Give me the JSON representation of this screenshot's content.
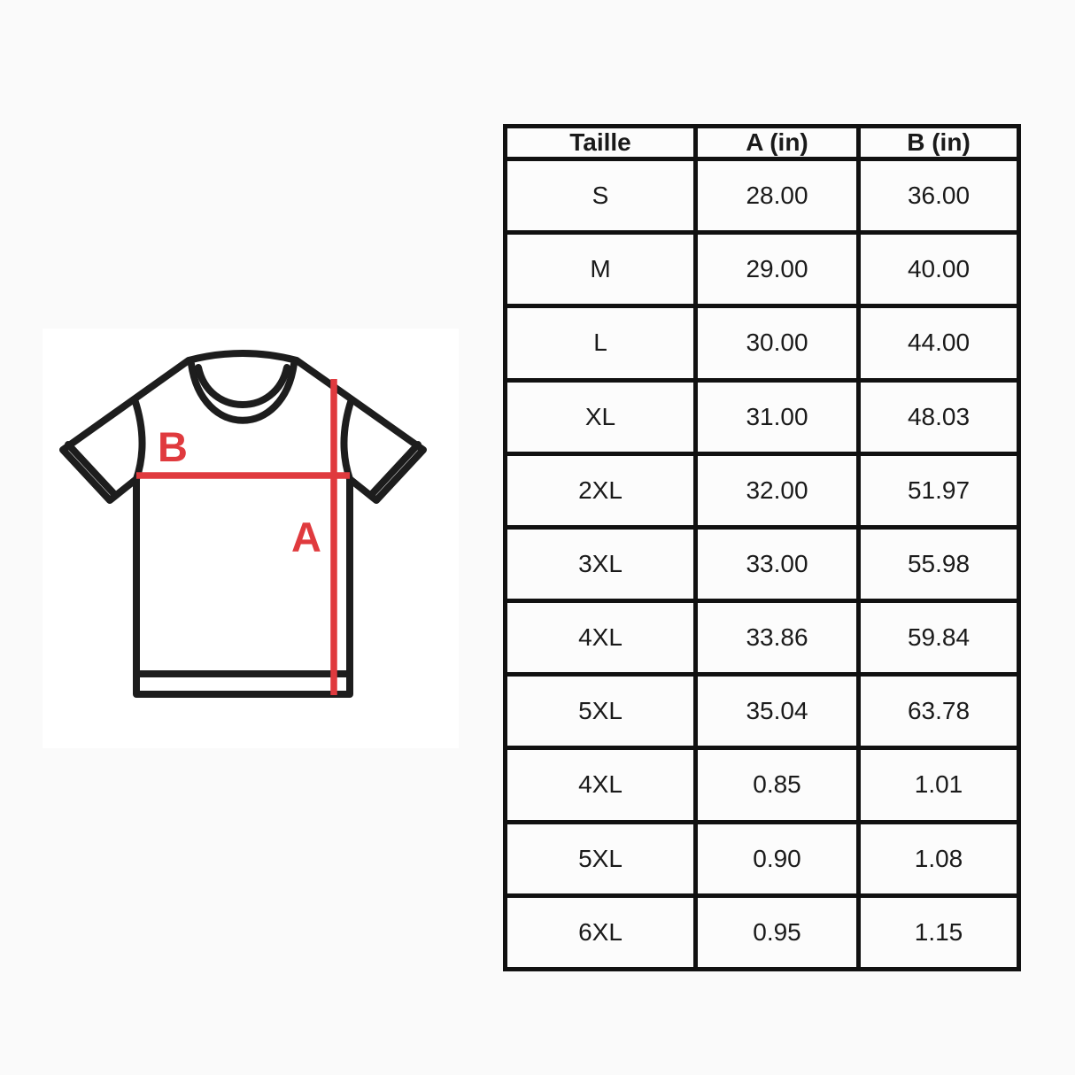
{
  "colors": {
    "background": "#fafafa",
    "panel": "#ffffff",
    "shirt_outline": "#1d1d1d",
    "accent_red": "#e03a3e",
    "table_border": "#111111",
    "text": "#1a1a1a"
  },
  "diagram": {
    "label_a": "A",
    "label_b": "B"
  },
  "chart_data": {
    "type": "table",
    "columns": [
      "Taille",
      "A (in)",
      "B (in)"
    ],
    "rows": [
      [
        "S",
        "28.00",
        "36.00"
      ],
      [
        "M",
        "29.00",
        "40.00"
      ],
      [
        "L",
        "30.00",
        "44.00"
      ],
      [
        "XL",
        "31.00",
        "48.03"
      ],
      [
        "2XL",
        "32.00",
        "51.97"
      ],
      [
        "3XL",
        "33.00",
        "55.98"
      ],
      [
        "4XL",
        "33.86",
        "59.84"
      ],
      [
        "5XL",
        "35.04",
        "63.78"
      ],
      [
        "4XL",
        "0.85",
        "1.01"
      ],
      [
        "5XL",
        "0.90",
        "1.08"
      ],
      [
        "6XL",
        "0.95",
        "1.15"
      ]
    ],
    "legend_position": "none",
    "grid": true
  }
}
